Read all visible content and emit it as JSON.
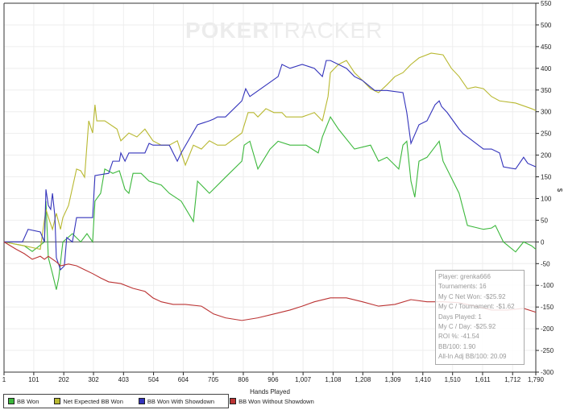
{
  "watermark": {
    "bold": "POKER",
    "light": "TRACKER"
  },
  "chart_data": {
    "type": "line",
    "xlabel": "Hands Played",
    "ylabel": "$",
    "xlim": [
      1,
      1790
    ],
    "ylim": [
      -300,
      550
    ],
    "grid": true,
    "legend_placement": "bottom-left",
    "x_ticks": [
      "1",
      "101",
      "202",
      "302",
      "403",
      "504",
      "604",
      "705",
      "806",
      "906",
      "1,007",
      "1,108",
      "1,208",
      "1,309",
      "1,410",
      "1,510",
      "1,611",
      "1,712",
      "1,790"
    ],
    "x_tick_values": [
      1,
      101,
      202,
      302,
      403,
      504,
      604,
      705,
      806,
      906,
      1007,
      1108,
      1208,
      1309,
      1410,
      1510,
      1611,
      1712,
      1790
    ],
    "y_ticks": [
      550,
      500,
      450,
      400,
      350,
      300,
      250,
      200,
      150,
      100,
      50,
      0,
      -50,
      -100,
      -150,
      -200,
      -250,
      -300
    ],
    "series": [
      {
        "name": "BB Won",
        "color": "#3cb83c",
        "points": [
          [
            1,
            0
          ],
          [
            69,
            -9
          ],
          [
            96,
            -22
          ],
          [
            137,
            0
          ],
          [
            142,
            94
          ],
          [
            150,
            -36
          ],
          [
            164,
            -73
          ],
          [
            177,
            -110
          ],
          [
            185,
            -83
          ],
          [
            199,
            0
          ],
          [
            231,
            19
          ],
          [
            259,
            0
          ],
          [
            280,
            19
          ],
          [
            299,
            0
          ],
          [
            307,
            94
          ],
          [
            326,
            112
          ],
          [
            340,
            168
          ],
          [
            367,
            158
          ],
          [
            389,
            164
          ],
          [
            408,
            121
          ],
          [
            421,
            112
          ],
          [
            435,
            158
          ],
          [
            462,
            158
          ],
          [
            489,
            140
          ],
          [
            530,
            131
          ],
          [
            557,
            112
          ],
          [
            597,
            94
          ],
          [
            638,
            47
          ],
          [
            652,
            140
          ],
          [
            692,
            112
          ],
          [
            746,
            149
          ],
          [
            801,
            186
          ],
          [
            809,
            223
          ],
          [
            828,
            232
          ],
          [
            855,
            168
          ],
          [
            896,
            214
          ],
          [
            923,
            232
          ],
          [
            963,
            223
          ],
          [
            1017,
            223
          ],
          [
            1058,
            205
          ],
          [
            1072,
            242
          ],
          [
            1099,
            288
          ],
          [
            1126,
            260
          ],
          [
            1180,
            214
          ],
          [
            1234,
            223
          ],
          [
            1261,
            186
          ],
          [
            1289,
            195
          ],
          [
            1329,
            168
          ],
          [
            1343,
            223
          ],
          [
            1356,
            232
          ],
          [
            1370,
            140
          ],
          [
            1383,
            103
          ],
          [
            1397,
            186
          ],
          [
            1424,
            195
          ],
          [
            1465,
            232
          ],
          [
            1478,
            186
          ],
          [
            1532,
            112
          ],
          [
            1560,
            38
          ],
          [
            1614,
            29
          ],
          [
            1641,
            32
          ],
          [
            1654,
            38
          ],
          [
            1681,
            0
          ],
          [
            1722,
            -23
          ],
          [
            1749,
            0
          ],
          [
            1776,
            -9
          ],
          [
            1790,
            -17
          ]
        ]
      },
      {
        "name": "Net Expected BB Won",
        "color": "#b8b830",
        "points": [
          [
            1,
            0
          ],
          [
            69,
            -9
          ],
          [
            123,
            -17
          ],
          [
            142,
            75
          ],
          [
            155,
            47
          ],
          [
            164,
            29
          ],
          [
            177,
            66
          ],
          [
            191,
            29
          ],
          [
            199,
            56
          ],
          [
            218,
            84
          ],
          [
            245,
            168
          ],
          [
            259,
            164
          ],
          [
            272,
            149
          ],
          [
            286,
            279
          ],
          [
            299,
            251
          ],
          [
            307,
            316
          ],
          [
            313,
            279
          ],
          [
            340,
            279
          ],
          [
            381,
            260
          ],
          [
            394,
            233
          ],
          [
            421,
            251
          ],
          [
            448,
            242
          ],
          [
            475,
            260
          ],
          [
            502,
            233
          ],
          [
            530,
            223
          ],
          [
            557,
            223
          ],
          [
            584,
            233
          ],
          [
            611,
            177
          ],
          [
            638,
            223
          ],
          [
            665,
            214
          ],
          [
            692,
            233
          ],
          [
            719,
            223
          ],
          [
            746,
            223
          ],
          [
            801,
            251
          ],
          [
            822,
            298
          ],
          [
            841,
            298
          ],
          [
            855,
            288
          ],
          [
            882,
            307
          ],
          [
            909,
            298
          ],
          [
            936,
            298
          ],
          [
            950,
            288
          ],
          [
            1004,
            288
          ],
          [
            1045,
            298
          ],
          [
            1072,
            279
          ],
          [
            1091,
            335
          ],
          [
            1099,
            390
          ],
          [
            1126,
            409
          ],
          [
            1153,
            418
          ],
          [
            1180,
            390
          ],
          [
            1207,
            372
          ],
          [
            1234,
            353
          ],
          [
            1261,
            344
          ],
          [
            1289,
            362
          ],
          [
            1316,
            381
          ],
          [
            1343,
            390
          ],
          [
            1370,
            409
          ],
          [
            1397,
            424
          ],
          [
            1438,
            435
          ],
          [
            1478,
            431
          ],
          [
            1506,
            400
          ],
          [
            1532,
            381
          ],
          [
            1560,
            353
          ],
          [
            1587,
            357
          ],
          [
            1614,
            353
          ],
          [
            1641,
            335
          ],
          [
            1668,
            325
          ],
          [
            1722,
            320
          ],
          [
            1776,
            307
          ],
          [
            1790,
            303
          ]
        ]
      },
      {
        "name": "BB Won With Showdown",
        "color": "#3333bb",
        "points": [
          [
            1,
            0
          ],
          [
            63,
            0
          ],
          [
            82,
            29
          ],
          [
            123,
            23
          ],
          [
            137,
            0
          ],
          [
            142,
            121
          ],
          [
            150,
            84
          ],
          [
            158,
            75
          ],
          [
            164,
            112
          ],
          [
            172,
            60
          ],
          [
            177,
            -36
          ],
          [
            191,
            -64
          ],
          [
            204,
            -55
          ],
          [
            212,
            10
          ],
          [
            231,
            0
          ],
          [
            245,
            56
          ],
          [
            299,
            56
          ],
          [
            307,
            153
          ],
          [
            353,
            158
          ],
          [
            367,
            186
          ],
          [
            389,
            186
          ],
          [
            394,
            205
          ],
          [
            408,
            186
          ],
          [
            421,
            205
          ],
          [
            475,
            205
          ],
          [
            489,
            227
          ],
          [
            502,
            223
          ],
          [
            557,
            223
          ],
          [
            584,
            186
          ],
          [
            597,
            205
          ],
          [
            652,
            270
          ],
          [
            692,
            279
          ],
          [
            706,
            283
          ],
          [
            719,
            288
          ],
          [
            746,
            288
          ],
          [
            801,
            325
          ],
          [
            814,
            353
          ],
          [
            828,
            335
          ],
          [
            923,
            381
          ],
          [
            936,
            409
          ],
          [
            963,
            400
          ],
          [
            1004,
            409
          ],
          [
            1045,
            400
          ],
          [
            1072,
            381
          ],
          [
            1085,
            418
          ],
          [
            1099,
            418
          ],
          [
            1126,
            409
          ],
          [
            1153,
            400
          ],
          [
            1180,
            381
          ],
          [
            1207,
            372
          ],
          [
            1248,
            349
          ],
          [
            1289,
            349
          ],
          [
            1343,
            344
          ],
          [
            1356,
            298
          ],
          [
            1370,
            227
          ],
          [
            1397,
            270
          ],
          [
            1424,
            279
          ],
          [
            1451,
            316
          ],
          [
            1465,
            325
          ],
          [
            1473,
            312
          ],
          [
            1492,
            298
          ],
          [
            1532,
            260
          ],
          [
            1546,
            249
          ],
          [
            1560,
            242
          ],
          [
            1614,
            214
          ],
          [
            1641,
            214
          ],
          [
            1668,
            205
          ],
          [
            1681,
            173
          ],
          [
            1722,
            168
          ],
          [
            1749,
            195
          ],
          [
            1763,
            181
          ],
          [
            1790,
            173
          ]
        ]
      },
      {
        "name": "BB Won Without Showdown",
        "color": "#bb3333",
        "points": [
          [
            1,
            0
          ],
          [
            42,
            -17
          ],
          [
            69,
            -27
          ],
          [
            96,
            -40
          ],
          [
            123,
            -33
          ],
          [
            137,
            -40
          ],
          [
            150,
            -33
          ],
          [
            177,
            -46
          ],
          [
            191,
            -55
          ],
          [
            218,
            -51
          ],
          [
            245,
            -55
          ],
          [
            272,
            -64
          ],
          [
            299,
            -73
          ],
          [
            326,
            -83
          ],
          [
            353,
            -92
          ],
          [
            394,
            -96
          ],
          [
            435,
            -107
          ],
          [
            475,
            -114
          ],
          [
            502,
            -129
          ],
          [
            530,
            -138
          ],
          [
            570,
            -144
          ],
          [
            611,
            -144
          ],
          [
            665,
            -148
          ],
          [
            706,
            -166
          ],
          [
            746,
            -175
          ],
          [
            801,
            -181
          ],
          [
            855,
            -175
          ],
          [
            909,
            -166
          ],
          [
            963,
            -157
          ],
          [
            1004,
            -148
          ],
          [
            1045,
            -138
          ],
          [
            1099,
            -129
          ],
          [
            1153,
            -129
          ],
          [
            1207,
            -138
          ],
          [
            1261,
            -148
          ],
          [
            1316,
            -144
          ],
          [
            1370,
            -133
          ],
          [
            1424,
            -138
          ],
          [
            1478,
            -138
          ],
          [
            1532,
            -140
          ],
          [
            1587,
            -148
          ],
          [
            1641,
            -157
          ],
          [
            1695,
            -157
          ],
          [
            1749,
            -153
          ],
          [
            1790,
            -162
          ]
        ]
      }
    ]
  },
  "stats": [
    "Player: grenka666",
    "Tournaments: 16",
    "My C Net Won: -$25.92",
    "My C / Tournament: -$1.62",
    "Days Played: 1",
    "My C / Day: -$25.92",
    "ROI %: -41.54",
    "BB/100: 1.90",
    "All-In Adj BB/100: 20.09"
  ]
}
